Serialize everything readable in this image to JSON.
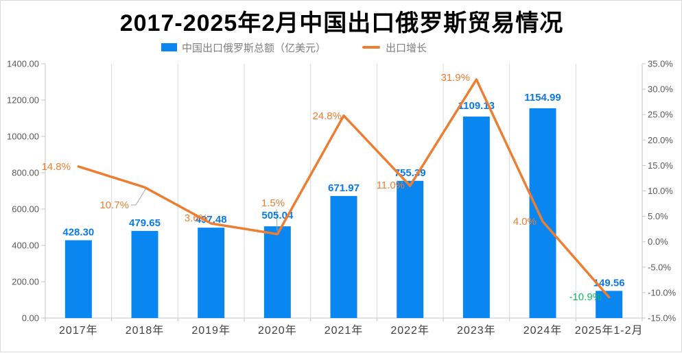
{
  "title": "2017-2025年2月中国出口俄罗斯贸易情况",
  "legend": {
    "bar_label": "中国出口俄罗斯总额（亿美元）",
    "line_label": "出口增长"
  },
  "chart_data": {
    "type": "bar+line",
    "title": "2017-2025年2月中国出口俄罗斯贸易情况",
    "categories": [
      "2017年",
      "2018年",
      "2019年",
      "2020年",
      "2021年",
      "2022年",
      "2023年",
      "2024年",
      "2025年1-2月"
    ],
    "series": [
      {
        "name": "中国出口俄罗斯总额（亿美元）",
        "type": "bar",
        "axis": "left",
        "unit": "亿美元",
        "values": [
          428.3,
          479.65,
          497.48,
          505.04,
          671.97,
          755.39,
          1109.13,
          1154.99,
          149.56
        ],
        "data_labels": [
          "428.30",
          "479.65",
          "497.48",
          "505.04",
          "671.97",
          "755.39",
          "1109.13",
          "1154.99",
          "149.56"
        ]
      },
      {
        "name": "出口增长",
        "type": "line",
        "axis": "right",
        "unit": "%",
        "values": [
          14.8,
          10.7,
          3.6,
          1.5,
          24.8,
          11.0,
          31.9,
          4.0,
          -10.9
        ],
        "data_labels": [
          "14.8%",
          "10.7%",
          "3.6%",
          "1.5%",
          "24.8%",
          "11.0%",
          "31.9%",
          "4.0%",
          "-10.9%"
        ]
      }
    ],
    "left_axis_ticks": [
      "1400.00",
      "1200.00",
      "1000.00",
      "800.00",
      "600.00",
      "400.00",
      "200.00",
      "0.00"
    ],
    "right_axis_ticks": [
      "35.0%",
      "30.0%",
      "25.0%",
      "20.0%",
      "15.0%",
      "10.0%",
      "5.0%",
      "0.0%",
      "-5.0%",
      "-10.0%",
      "-15.0%"
    ],
    "left_axis_range": [
      0,
      1400
    ],
    "right_axis_range": [
      -15,
      35
    ],
    "grid": "vertical-only",
    "legend_position": "top"
  },
  "colors": {
    "bar": "#0a86f1",
    "bar_label": "#0b7ae8",
    "line": "#ed7d31",
    "line_label": "#ed7d31",
    "negative_label": "#0fbd5f",
    "axis_text": "#595959",
    "category_text": "#404040",
    "legend_text": "#7f7f7f",
    "grid": "#d9d9d9",
    "axis_line": "#c6c6c6",
    "leader": "#a6a6a6"
  }
}
